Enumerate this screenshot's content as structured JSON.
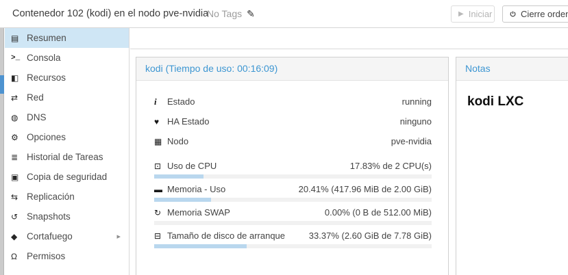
{
  "colors": {
    "accent_blue": "#3d96d2",
    "selected_item_bg": "#cfe6f5",
    "panel_header_bg": "#f5f5f5",
    "progress_fill": "#b9d7ee",
    "progress_track": "#f1f1f1",
    "tree_scrollbar_thumb": "#4e93d0"
  },
  "icons": {
    "pencil": "✎",
    "play": "▶",
    "chevron_right": "▸"
  },
  "topbar": {
    "title": "Contenedor 102 (kodi) en el nodo pve-nvidia",
    "tags_label": "No Tags",
    "start_label": "Iniciar",
    "shutdown_label": "Cierre ordenado"
  },
  "sidebar": {
    "items": [
      {
        "id": "resumen",
        "icon": "book-icon",
        "glyph": "▤",
        "label": "Resumen",
        "selected": true
      },
      {
        "id": "consola",
        "icon": "terminal-icon",
        "glyph": ">_",
        "label": "Consola",
        "mono": true
      },
      {
        "id": "recursos",
        "icon": "cube-icon",
        "glyph": "◧",
        "label": "Recursos"
      },
      {
        "id": "red",
        "icon": "network-icon",
        "glyph": "⇄",
        "label": "Red"
      },
      {
        "id": "dns",
        "icon": "globe-icon",
        "glyph": "◍",
        "label": "DNS"
      },
      {
        "id": "opciones",
        "icon": "gear-icon",
        "glyph": "⚙",
        "label": "Opciones"
      },
      {
        "id": "historial-de-tareas",
        "icon": "task-list-icon",
        "glyph": "≣",
        "label": "Historial de Tareas"
      },
      {
        "id": "copia-de-seguridad",
        "icon": "floppy-icon",
        "glyph": "▣",
        "label": "Copia de seguridad"
      },
      {
        "id": "replicacion",
        "icon": "replication-icon",
        "glyph": "⇆",
        "label": "Replicación"
      },
      {
        "id": "snapshots",
        "icon": "history-icon",
        "glyph": "↺",
        "label": "Snapshots"
      },
      {
        "id": "cortafuego",
        "icon": "shield-icon",
        "glyph": "◆",
        "label": "Cortafuego",
        "has_submenu": true
      },
      {
        "id": "permisos",
        "icon": "unlock-icon",
        "glyph": "Ω",
        "label": "Permisos"
      }
    ]
  },
  "status_panel": {
    "title": "kodi (Tiempo de uso: 00:16:09)",
    "rows": [
      {
        "icon": "info-icon",
        "glyph": "i",
        "serif": true,
        "label": "Estado",
        "value": "running"
      },
      {
        "icon": "heartbeat-icon",
        "glyph": "♥",
        "label": "HA Estado",
        "value": "ninguno"
      },
      {
        "icon": "node-icon",
        "glyph": "▦",
        "label": "Nodo",
        "value": "pve-nvidia"
      }
    ],
    "meters": [
      {
        "icon": "cpu-icon",
        "glyph": "⊡",
        "label": "Uso de CPU",
        "value": "17.83% de 2 CPU(s)",
        "percent": 17.83
      },
      {
        "icon": "memory-icon",
        "glyph": "▬",
        "label": "Memoria - Uso",
        "value": "20.41% (417.96 MiB de 2.00 GiB)",
        "percent": 20.41
      },
      {
        "icon": "swap-icon",
        "glyph": "↻",
        "label": "Memoria SWAP",
        "value": "0.00% (0 B de 512.00 MiB)",
        "percent": 0
      },
      {
        "icon": "disk-icon",
        "glyph": "⊟",
        "label": "Tamaño de disco de arranque",
        "value": "33.37% (2.60 GiB de 7.78 GiB)",
        "percent": 33.37
      }
    ]
  },
  "notes_panel": {
    "title": "Notas",
    "content": "kodi LXC"
  }
}
